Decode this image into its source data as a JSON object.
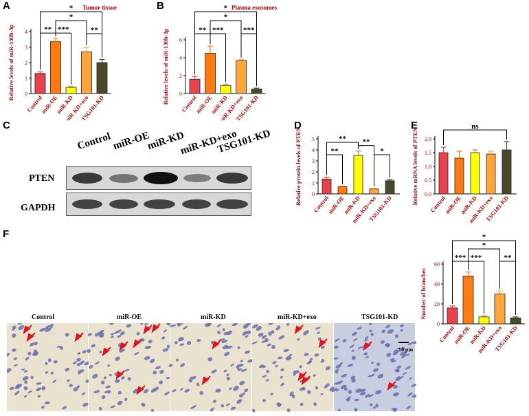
{
  "panels": {
    "A": "A",
    "B": "B",
    "C": "C",
    "D": "D",
    "E": "E",
    "F": "F"
  },
  "colors": {
    "control": "#e8424a",
    "miR_OE": "#ff7a10",
    "miR_KD": "#ffff00",
    "miR_KD_exo": "#ffa53a",
    "TSG101_KD": "#4a4a2a",
    "label_red": "#c00000"
  },
  "chart_data": [
    {
      "id": "A",
      "type": "bar",
      "title": "Tumor tissue",
      "ylabel": "Relative levels of miR-130b-3p",
      "categories": [
        "Control",
        "miR-OE",
        "miR-KD",
        "miR-KD+exo",
        "TSG101-KD"
      ],
      "values": [
        1.3,
        3.35,
        0.4,
        2.7,
        2.0
      ],
      "errors": [
        0.1,
        0.2,
        0.05,
        0.3,
        0.2
      ],
      "ylim": [
        0,
        4
      ],
      "yticks": [
        "0",
        "1",
        "2",
        "3",
        "4"
      ],
      "significance": [
        {
          "from": 0,
          "to": 1,
          "label": "**"
        },
        {
          "from": 1,
          "to": 2,
          "label": "***"
        },
        {
          "from": 1,
          "to": 3,
          "label": "*"
        },
        {
          "from": 3,
          "to": 4,
          "label": "**"
        },
        {
          "from": 0,
          "to": 4,
          "label": "*"
        }
      ]
    },
    {
      "id": "B",
      "type": "bar",
      "title": "Plasma exosomes",
      "ylabel": "Relative levels of miR-130b-3p",
      "categories": [
        "Control",
        "miR-OE",
        "miR-KD",
        "miR-KD+exo",
        "TSG101-KD"
      ],
      "values": [
        1.6,
        4.5,
        0.9,
        3.7,
        0.5
      ],
      "errors": [
        0.3,
        0.8,
        0.15,
        0.1,
        0.1
      ],
      "ylim": [
        0,
        6
      ],
      "yticks": [
        "0",
        "2",
        "4",
        "6"
      ],
      "significance": [
        {
          "from": 0,
          "to": 1,
          "label": "**"
        },
        {
          "from": 1,
          "to": 2,
          "label": "***"
        },
        {
          "from": 1,
          "to": 3,
          "label": "*"
        },
        {
          "from": 3,
          "to": 4,
          "label": "***"
        },
        {
          "from": 0,
          "to": 4,
          "label": "*"
        }
      ]
    },
    {
      "id": "D",
      "type": "bar",
      "title": "",
      "ylabel": "Relative protein levels of PTEN",
      "categories": [
        "Control",
        "miR-OE",
        "miR-KD",
        "miR-KD+exo",
        "TSG101-KD"
      ],
      "values": [
        1.35,
        0.65,
        3.5,
        0.45,
        1.2
      ],
      "errors": [
        0.15,
        0.05,
        0.4,
        0.05,
        0.1
      ],
      "ylim": [
        0,
        5
      ],
      "yticks": [
        "0",
        "1",
        "2",
        "3",
        "4",
        "5"
      ],
      "significance": [
        {
          "from": 0,
          "to": 1,
          "label": "**"
        },
        {
          "from": 2,
          "to": 3,
          "label": "**"
        },
        {
          "from": 3,
          "to": 4,
          "label": "*"
        },
        {
          "from": 0,
          "to": 2,
          "label": "**"
        }
      ]
    },
    {
      "id": "E",
      "type": "bar",
      "title": "",
      "ylabel": "Relative mRNA levels of PTEN",
      "categories": [
        "Control",
        "miR-OE",
        "miR-KD",
        "miR-KD+exo",
        "TSG101-KD"
      ],
      "values": [
        1.5,
        1.3,
        1.5,
        1.45,
        1.6
      ],
      "errors": [
        0.2,
        0.25,
        0.1,
        0.1,
        0.3
      ],
      "ylim": [
        0,
        2.0
      ],
      "yticks": [
        "0.0",
        "0.5",
        "1.0",
        "1.5",
        "2.0"
      ],
      "significance": [
        {
          "from": 0,
          "to": 4,
          "label": "ns"
        }
      ]
    },
    {
      "id": "F",
      "type": "bar",
      "title": "",
      "ylabel": "Number of branches",
      "categories": [
        "Control",
        "miR-OE",
        "miR-KD",
        "miR-KD+exo",
        "TSG101-KD"
      ],
      "values": [
        16,
        48,
        7,
        30,
        6
      ],
      "errors": [
        2,
        4,
        1,
        3,
        1
      ],
      "ylim": [
        0,
        60
      ],
      "yticks": [
        "0",
        "20",
        "40",
        "60"
      ],
      "significance": [
        {
          "from": 0,
          "to": 1,
          "label": "***"
        },
        {
          "from": 1,
          "to": 2,
          "label": "***"
        },
        {
          "from": 1,
          "to": 3,
          "label": "*"
        },
        {
          "from": 3,
          "to": 4,
          "label": "**"
        },
        {
          "from": 0,
          "to": 4,
          "label": "*"
        }
      ]
    }
  ],
  "western_blot": {
    "lanes": [
      "Control",
      "miR-OE",
      "miR-KD",
      "miR-KD+exo",
      "TSG101-KD"
    ],
    "rows": [
      "PTEN",
      "GAPDH"
    ],
    "pten_intensity": [
      0.8,
      0.5,
      1.0,
      0.45,
      0.8
    ],
    "gapdh_intensity": [
      0.75,
      0.75,
      0.75,
      0.75,
      0.75
    ]
  },
  "micrographs": {
    "titles": [
      "Control",
      "miR-OE",
      "miR-KD",
      "miR-KD+exo",
      "TSG101-KD"
    ],
    "scale_bar": "10 μm"
  }
}
